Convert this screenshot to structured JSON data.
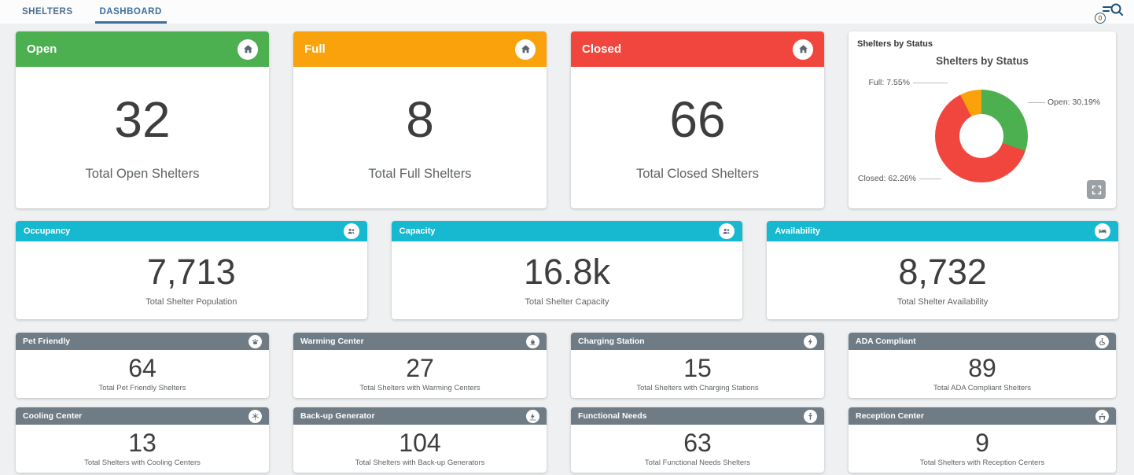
{
  "tabs": [
    {
      "label": "SHELTERS",
      "active": false
    },
    {
      "label": "DASHBOARD",
      "active": true
    }
  ],
  "toolbar": {
    "search_icon": "filter-search-icon",
    "search_badge_count": "0"
  },
  "colors": {
    "green": "#4caf50",
    "orange": "#f9a20c",
    "red": "#f1463d",
    "teal": "#16b9cf",
    "gray_header": "#6f7b85",
    "tab_blue": "#3c6f9e"
  },
  "status_cards": [
    {
      "title": "Open",
      "value": "32",
      "caption": "Total Open Shelters",
      "color": "#4caf50",
      "icon": "home-icon"
    },
    {
      "title": "Full",
      "value": "8",
      "caption": "Total Full Shelters",
      "color": "#f9a20c",
      "icon": "home-icon"
    },
    {
      "title": "Closed",
      "value": "66",
      "caption": "Total Closed Shelters",
      "color": "#f1463d",
      "icon": "home-icon"
    }
  ],
  "chart_card": {
    "card_title": "Shelters by Status",
    "expand_icon": "fullscreen-icon"
  },
  "chart_data": {
    "type": "pie",
    "donut": true,
    "title": "Shelters by Status",
    "legend_position": "outside-labels",
    "slices": [
      {
        "label": "Open",
        "pct": 30.19,
        "color": "#4caf50",
        "annotation": "Open: 30.19%"
      },
      {
        "label": "Closed",
        "pct": 62.26,
        "color": "#f1463d",
        "annotation": "Closed: 62.26%"
      },
      {
        "label": "Full",
        "pct": 7.55,
        "color": "#f9a20c",
        "annotation": "Full: 7.55%"
      }
    ]
  },
  "metric_cards": [
    {
      "title": "Occupancy",
      "value": "7,713",
      "caption": "Total Shelter Population",
      "icon": "people-icon"
    },
    {
      "title": "Capacity",
      "value": "16.8k",
      "caption": "Total Shelter Capacity",
      "icon": "people-icon"
    },
    {
      "title": "Availability",
      "value": "8,732",
      "caption": "Total Shelter Availability",
      "icon": "bed-icon"
    }
  ],
  "feature_cards_row1": [
    {
      "title": "Pet Friendly",
      "value": "64",
      "caption": "Total Pet Friendly Shelters",
      "icon": "paw-icon"
    },
    {
      "title": "Warming Center",
      "value": "27",
      "caption": "Total Shelters with Warming Centers",
      "icon": "warming-icon"
    },
    {
      "title": "Charging Station",
      "value": "15",
      "caption": "Total Shelters with Charging Stations",
      "icon": "charging-icon"
    },
    {
      "title": "ADA Compliant",
      "value": "89",
      "caption": "Total ADA Compliant Shelters",
      "icon": "ada-wheelchair-icon"
    }
  ],
  "feature_cards_row2": [
    {
      "title": "Cooling Center",
      "value": "13",
      "caption": "Total Shelters with Cooling Centers",
      "icon": "cooling-icon"
    },
    {
      "title": "Back-up Generator",
      "value": "104",
      "caption": "Total Shelters with Back-up Generators",
      "icon": "generator-icon"
    },
    {
      "title": "Functional Needs",
      "value": "63",
      "caption": "Total Functional Needs Shelters",
      "icon": "functional-needs-icon"
    },
    {
      "title": "Reception Center",
      "value": "9",
      "caption": "Total Shelters with Reception Centers",
      "icon": "reception-icon"
    }
  ]
}
